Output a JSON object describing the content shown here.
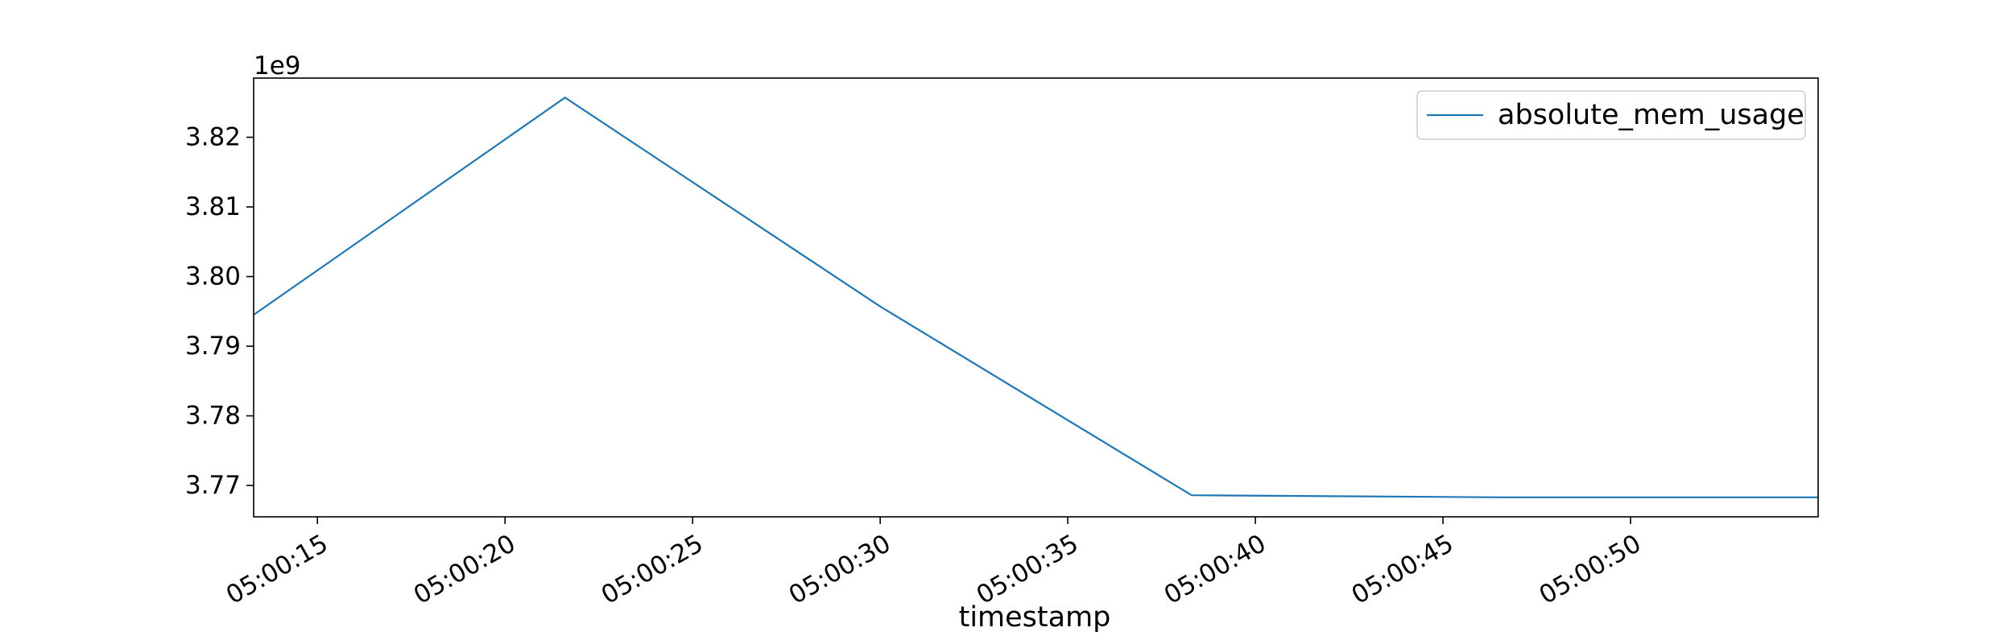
{
  "colors": {
    "series": "#1f77b4",
    "axis": "#000000",
    "legend_border": "#cccccc",
    "background": "#ffffff"
  },
  "chart_data": {
    "type": "line",
    "title": "",
    "xlabel": "timestamp",
    "ylabel": "",
    "y_offset_label": "1e9",
    "grid": false,
    "legend_position": "top-right",
    "x_unit": "seconds after 05:00:00",
    "xlim": [
      13.3,
      55.0
    ],
    "ylim": [
      3.7655,
      3.8285
    ],
    "x_ticks": [
      {
        "value": 15,
        "label": "05:00:15"
      },
      {
        "value": 20,
        "label": "05:00:20"
      },
      {
        "value": 25,
        "label": "05:00:25"
      },
      {
        "value": 30,
        "label": "05:00:30"
      },
      {
        "value": 35,
        "label": "05:00:35"
      },
      {
        "value": 40,
        "label": "05:00:40"
      },
      {
        "value": 45,
        "label": "05:00:45"
      },
      {
        "value": 50,
        "label": "05:00:50"
      }
    ],
    "y_ticks": [
      {
        "value": 3.77,
        "label": "3.77"
      },
      {
        "value": 3.78,
        "label": "3.78"
      },
      {
        "value": 3.79,
        "label": "3.79"
      },
      {
        "value": 3.8,
        "label": "3.80"
      },
      {
        "value": 3.81,
        "label": "3.81"
      },
      {
        "value": 3.82,
        "label": "3.82"
      }
    ],
    "series": [
      {
        "name": "absolute_mem_usage",
        "x": [
          13.3,
          21.6,
          30.0,
          38.3,
          46.6,
          55.0
        ],
        "y": [
          3.7945,
          3.8257,
          3.7957,
          3.7686,
          3.7683,
          3.7683
        ]
      }
    ]
  }
}
